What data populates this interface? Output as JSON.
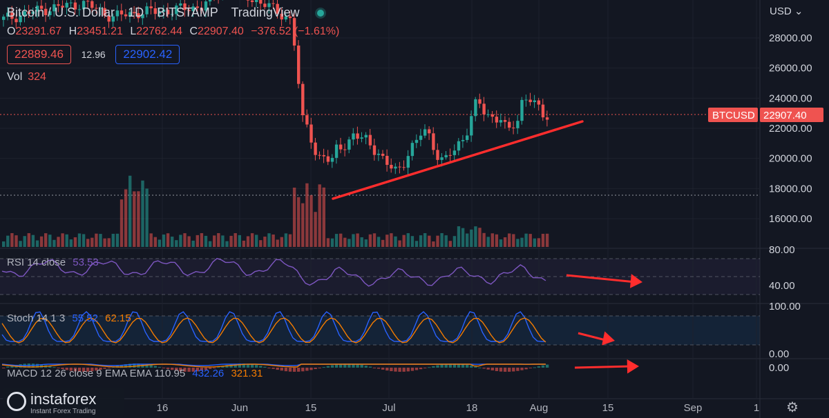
{
  "header": {
    "symbol": "Bitcoin / U.S. Dollar",
    "interval": "1D",
    "exchange": "BITSTAMP",
    "source": "TradingView",
    "ohlc": {
      "o_label": "O",
      "o": "23291.67",
      "h_label": "H",
      "h": "23451.21",
      "l_label": "L",
      "l": "22762.44",
      "c_label": "C",
      "c": "22907.40",
      "change": "−376.52 (−1.61%)"
    },
    "sell_price": "22889.46",
    "spread": "12.96",
    "buy_price": "22902.42",
    "vol_label": "Vol",
    "vol_value": "324"
  },
  "currency": "USD",
  "price_label": {
    "symbol": "BTCUSD",
    "value": "22907.40"
  },
  "indicators": {
    "rsi": {
      "label": "RSI",
      "params": "14 close",
      "value": "53.53"
    },
    "stoch": {
      "label": "Stoch",
      "params": "14 1 3",
      "k": "55.52",
      "d": "62.15"
    },
    "macd": {
      "label": "MACD",
      "params": "12 26 close 9 EMA EMA",
      "hist": "110.95",
      "macd": "432.26",
      "signal": "321.31"
    }
  },
  "logo": {
    "name": "instaforex",
    "tagline": "Instant Forex Trading"
  },
  "colors": {
    "up": "#26a69a",
    "down": "#ef5350",
    "rsi": "#7e57c2",
    "stoch_k": "#2962ff",
    "stoch_d": "#f57c00",
    "trend": "#ff2d2d"
  },
  "chart_data": {
    "type": "candlestick",
    "price_axis": {
      "ticks": [
        "28000.00",
        "26000.00",
        "24000.00",
        "22000.00",
        "20000.00",
        "18000.00",
        "16000.00"
      ]
    },
    "rsi_axis": {
      "ticks": [
        "80.00",
        "40.00"
      ]
    },
    "stoch_axis": {
      "ticks": [
        "100.00",
        "0.00"
      ]
    },
    "macd_axis": {
      "ticks": [
        "0.00"
      ]
    },
    "x_ticks": [
      "16",
      "Jun",
      "15",
      "Jul",
      "18",
      "Aug",
      "15",
      "Sep",
      "1"
    ],
    "last_price": 22907.4,
    "annotations": [
      "red rising trendline under lows",
      "red arrows pointing right on RSI, Stoch and MACD panes"
    ]
  }
}
